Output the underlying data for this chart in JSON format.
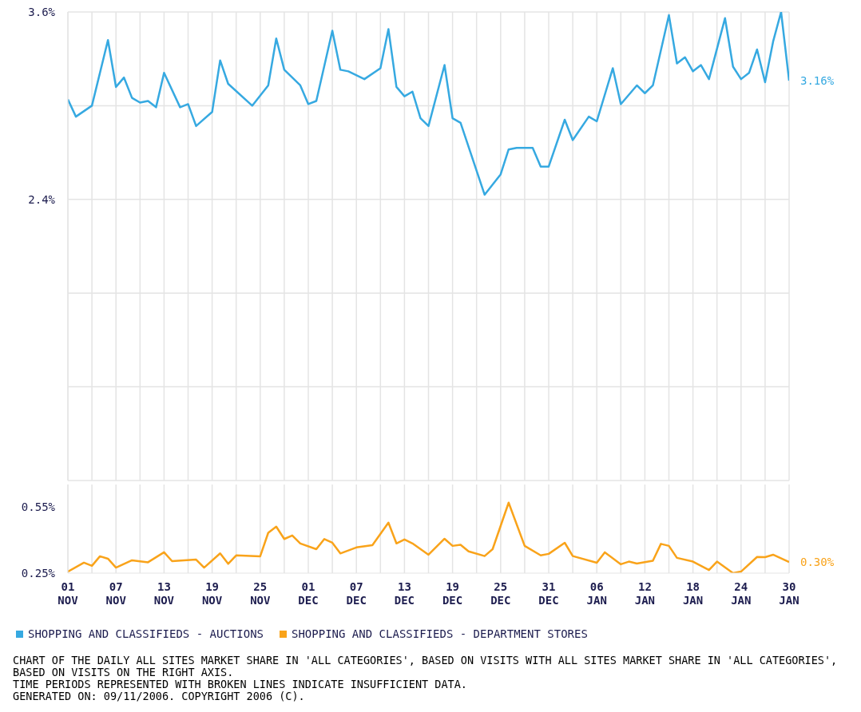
{
  "chart_data": [
    {
      "type": "line",
      "x": [
        "2005-11-01",
        "2005-11-02",
        "2005-11-04",
        "2005-11-06",
        "2005-11-07",
        "2005-11-08",
        "2005-11-09",
        "2005-11-10",
        "2005-11-11",
        "2005-11-12",
        "2005-11-13",
        "2005-11-15",
        "2005-11-16",
        "2005-11-17",
        "2005-11-19",
        "2005-11-20",
        "2005-11-21",
        "2005-11-24",
        "2005-11-26",
        "2005-11-27",
        "2005-11-28",
        "2005-11-30",
        "2005-12-01",
        "2005-12-02",
        "2005-12-04",
        "2005-12-05",
        "2005-12-06",
        "2005-12-08",
        "2005-12-10",
        "2005-12-11",
        "2005-12-12",
        "2005-12-13",
        "2005-12-14",
        "2005-12-15",
        "2005-12-16",
        "2005-12-18",
        "2005-12-19",
        "2005-12-20",
        "2005-12-23",
        "2005-12-25",
        "2005-12-26",
        "2005-12-27",
        "2005-12-29",
        "2005-12-30",
        "2005-12-31",
        "2006-01-02",
        "2006-01-03",
        "2006-01-05",
        "2006-01-06",
        "2006-01-08",
        "2006-01-09",
        "2006-01-11",
        "2006-01-12",
        "2006-01-13",
        "2006-01-15",
        "2006-01-16",
        "2006-01-17",
        "2006-01-18",
        "2006-01-19",
        "2006-01-20",
        "2006-01-22",
        "2006-01-23",
        "2006-01-24",
        "2006-01-25",
        "2006-01-26",
        "2006-01-27",
        "2006-01-28",
        "2006-01-29",
        "2006-01-30"
      ],
      "series": [
        {
          "name": "SHOPPING AND CLASSIFIEDS - AUCTIONS",
          "color": "#36a9e1",
          "values": [
            3.04,
            2.93,
            3.0,
            3.42,
            3.12,
            3.18,
            3.05,
            3.02,
            3.03,
            2.99,
            3.21,
            2.99,
            3.01,
            2.87,
            2.96,
            3.29,
            3.14,
            3.0,
            3.13,
            3.43,
            3.23,
            3.13,
            3.01,
            3.03,
            3.48,
            3.23,
            3.22,
            3.17,
            3.24,
            3.49,
            3.12,
            3.06,
            3.09,
            2.92,
            2.87,
            3.26,
            2.92,
            2.89,
            2.43,
            2.56,
            2.72,
            2.73,
            2.73,
            2.61,
            2.61,
            2.91,
            2.78,
            2.93,
            2.9,
            3.24,
            3.01,
            3.13,
            3.08,
            3.13,
            3.58,
            3.27,
            3.31,
            3.22,
            3.26,
            3.17,
            3.56,
            3.25,
            3.17,
            3.21,
            3.36,
            3.15,
            3.41,
            3.6,
            3.16
          ]
        }
      ],
      "xlim": [
        "2005-11-01",
        "2006-01-30"
      ],
      "xticks": [
        {
          "value": "2005-11-01",
          "label": null
        },
        {
          "value": "2005-11-04",
          "label": null
        },
        {
          "value": "2005-11-07",
          "label": null
        },
        {
          "value": "2005-11-10",
          "label": null
        },
        {
          "value": "2005-11-13",
          "label": null
        },
        {
          "value": "2005-11-16",
          "label": null
        },
        {
          "value": "2005-11-19",
          "label": null
        },
        {
          "value": "2005-11-22",
          "label": null
        },
        {
          "value": "2005-11-25",
          "label": null
        },
        {
          "value": "2005-11-28",
          "label": null
        },
        {
          "value": "2005-12-01",
          "label": null
        },
        {
          "value": "2005-12-04",
          "label": null
        },
        {
          "value": "2005-12-07",
          "label": null
        },
        {
          "value": "2005-12-10",
          "label": null
        },
        {
          "value": "2005-12-13",
          "label": null
        },
        {
          "value": "2005-12-16",
          "label": null
        },
        {
          "value": "2005-12-19",
          "label": null
        },
        {
          "value": "2005-12-22",
          "label": null
        },
        {
          "value": "2005-12-25",
          "label": null
        },
        {
          "value": "2005-12-28",
          "label": null
        },
        {
          "value": "2005-12-31",
          "label": null
        },
        {
          "value": "2006-01-03",
          "label": null
        },
        {
          "value": "2006-01-06",
          "label": null
        },
        {
          "value": "2006-01-09",
          "label": null
        },
        {
          "value": "2006-01-12",
          "label": null
        },
        {
          "value": "2006-01-15",
          "label": null
        },
        {
          "value": "2006-01-18",
          "label": null
        },
        {
          "value": "2006-01-21",
          "label": null
        },
        {
          "value": "2006-01-24",
          "label": null
        },
        {
          "value": "2006-01-27",
          "label": null
        },
        {
          "value": "2006-01-30",
          "label": null
        }
      ],
      "ylim": [
        0.6,
        3.6
      ],
      "yticks": [
        {
          "value": 3.6,
          "label": "3.6%"
        },
        {
          "value": 3.0,
          "label": null
        },
        {
          "value": 2.4,
          "label": "2.4%"
        },
        {
          "value": 1.8,
          "label": null
        },
        {
          "value": 1.2,
          "label": null
        },
        {
          "value": 0.6,
          "label": null
        }
      ],
      "tick_labels": "y",
      "grid": true,
      "legend": "bottom",
      "annotations": [
        {
          "text": "3.16%",
          "x": "2006-01-30",
          "y": 3.16
        }
      ]
    },
    {
      "type": "line",
      "x": [
        "2005-11-01",
        "2005-11-03",
        "2005-11-04",
        "2005-11-05",
        "2005-11-06",
        "2005-11-07",
        "2005-11-09",
        "2005-11-11",
        "2005-11-13",
        "2005-11-14",
        "2005-11-17",
        "2005-11-18",
        "2005-11-20",
        "2005-11-21",
        "2005-11-22",
        "2005-11-25",
        "2005-11-26",
        "2005-11-27",
        "2005-11-28",
        "2005-11-29",
        "2005-11-30",
        "2005-12-02",
        "2005-12-03",
        "2005-12-04",
        "2005-12-05",
        "2005-12-07",
        "2005-12-09",
        "2005-12-11",
        "2005-12-12",
        "2005-12-13",
        "2005-12-14",
        "2005-12-16",
        "2005-12-18",
        "2005-12-19",
        "2005-12-20",
        "2005-12-21",
        "2005-12-23",
        "2005-12-24",
        "2005-12-26",
        "2005-12-28",
        "2005-12-30",
        "2005-12-31",
        "2006-01-02",
        "2006-01-03",
        "2006-01-06",
        "2006-01-07",
        "2006-01-09",
        "2006-01-10",
        "2006-01-11",
        "2006-01-13",
        "2006-01-14",
        "2006-01-15",
        "2006-01-16",
        "2006-01-18",
        "2006-01-20",
        "2006-01-21",
        "2006-01-23",
        "2006-01-24",
        "2006-01-26",
        "2006-01-27",
        "2006-01-28",
        "2006-01-30"
      ],
      "series": [
        {
          "name": "SHOPPING AND CLASSIFIEDS - DEPARTMENT STORES",
          "color": "#f9a31a",
          "values": [
            0.257,
            0.297,
            0.283,
            0.326,
            0.315,
            0.275,
            0.308,
            0.299,
            0.344,
            0.304,
            0.311,
            0.275,
            0.339,
            0.292,
            0.33,
            0.326,
            0.432,
            0.46,
            0.404,
            0.42,
            0.384,
            0.358,
            0.404,
            0.387,
            0.339,
            0.366,
            0.376,
            0.478,
            0.384,
            0.402,
            0.384,
            0.333,
            0.405,
            0.373,
            0.378,
            0.348,
            0.327,
            0.358,
            0.568,
            0.373,
            0.33,
            0.337,
            0.387,
            0.327,
            0.297,
            0.344,
            0.29,
            0.302,
            0.293,
            0.306,
            0.382,
            0.373,
            0.319,
            0.302,
            0.264,
            0.302,
            0.25,
            0.257,
            0.323,
            0.322,
            0.333,
            0.3
          ]
        }
      ],
      "xlim": [
        "2005-11-01",
        "2006-01-30"
      ],
      "xticks": [
        {
          "value": "2005-11-01",
          "label": "01 NOV"
        },
        {
          "value": "2005-11-04",
          "label": null
        },
        {
          "value": "2005-11-07",
          "label": "07 NOV"
        },
        {
          "value": "2005-11-10",
          "label": null
        },
        {
          "value": "2005-11-13",
          "label": "13 NOV"
        },
        {
          "value": "2005-11-16",
          "label": null
        },
        {
          "value": "2005-11-19",
          "label": "19 NOV"
        },
        {
          "value": "2005-11-22",
          "label": null
        },
        {
          "value": "2005-11-25",
          "label": "25 NOV"
        },
        {
          "value": "2005-11-28",
          "label": null
        },
        {
          "value": "2005-12-01",
          "label": "01 DEC"
        },
        {
          "value": "2005-12-04",
          "label": null
        },
        {
          "value": "2005-12-07",
          "label": "07 DEC"
        },
        {
          "value": "2005-12-10",
          "label": null
        },
        {
          "value": "2005-12-13",
          "label": "13 DEC"
        },
        {
          "value": "2005-12-16",
          "label": null
        },
        {
          "value": "2005-12-19",
          "label": "19 DEC"
        },
        {
          "value": "2005-12-22",
          "label": null
        },
        {
          "value": "2005-12-25",
          "label": "25 DEC"
        },
        {
          "value": "2005-12-28",
          "label": null
        },
        {
          "value": "2005-12-31",
          "label": "31 DEC"
        },
        {
          "value": "2006-01-03",
          "label": null
        },
        {
          "value": "2006-01-06",
          "label": "06 JAN"
        },
        {
          "value": "2006-01-09",
          "label": null
        },
        {
          "value": "2006-01-12",
          "label": "12 JAN"
        },
        {
          "value": "2006-01-15",
          "label": null
        },
        {
          "value": "2006-01-18",
          "label": "18 JAN"
        },
        {
          "value": "2006-01-21",
          "label": null
        },
        {
          "value": "2006-01-24",
          "label": "24 JAN"
        },
        {
          "value": "2006-01-27",
          "label": null
        },
        {
          "value": "2006-01-30",
          "label": "30 JAN"
        }
      ],
      "ylim": [
        0.25,
        0.65
      ],
      "yticks": [
        {
          "value": 0.25,
          "label": "0.25%"
        },
        {
          "value": 0.55,
          "label": "0.55%"
        }
      ],
      "grid": "x",
      "legend": "bottom",
      "annotations": [
        {
          "text": "0.30%",
          "x": "2006-01-30",
          "y": 0.3
        },
        "CHART OF THE DAILY ALL SITES MARKET SHARE IN 'ALL CATEGORIES', BASED ON VISITS WITH ALL SITES MARKET SHARE IN 'ALL CATEGORIES', BASED ON VISITS ON THE RIGHT AXIS.",
        "TIME PERIODS REPRESENTED WITH BROKEN LINES INDICATE INSUFFICIENT DATA.",
        "GENERATED ON: 09/11/2006. COPYRIGHT 2006 (C)."
      ]
    }
  ]
}
